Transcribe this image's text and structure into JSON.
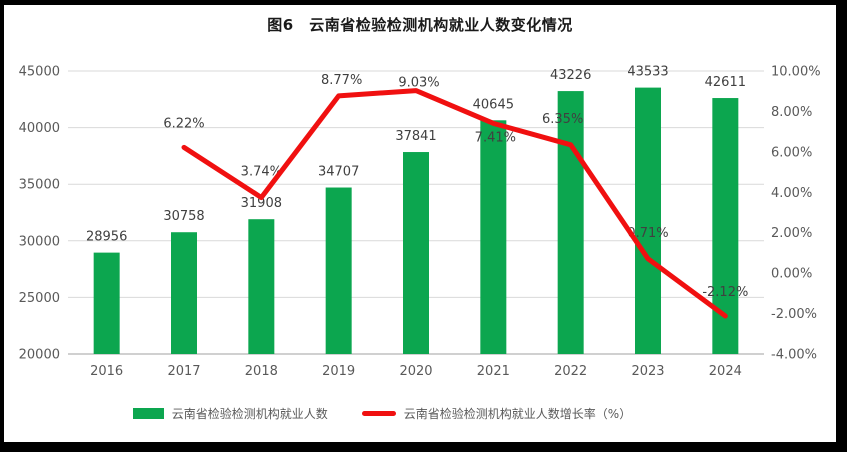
{
  "chart_data": {
    "type": "combo-bar-line",
    "title": "图6　云南省检验检测机构就业人数变化情况",
    "categories": [
      "2016",
      "2017",
      "2018",
      "2019",
      "2020",
      "2021",
      "2022",
      "2023",
      "2024"
    ],
    "series": [
      {
        "name": "云南省检验检测机构就业人数",
        "type": "bar",
        "axis": "left",
        "values": [
          28956,
          30758,
          31908,
          34707,
          37841,
          40645,
          43226,
          43533,
          42611
        ],
        "labels": [
          "28956",
          "30758",
          "31908",
          "34707",
          "37841",
          "40645",
          "43226",
          "43533",
          "42611"
        ]
      },
      {
        "name": "云南省检验检测机构就业人数增长率（%）",
        "type": "line",
        "axis": "right",
        "x": [
          "2017",
          "2018",
          "2019",
          "2020",
          "2021",
          "2022",
          "2023",
          "2024"
        ],
        "values": [
          6.22,
          3.74,
          8.77,
          9.03,
          7.41,
          6.35,
          0.71,
          -2.12
        ],
        "labels": [
          "6.22%",
          "3.74%",
          "8.77%",
          "9.03%",
          "7.41%",
          "6.35%",
          "0.71%",
          "-2.12%"
        ]
      }
    ],
    "left_axis": {
      "min": 20000,
      "max": 45000,
      "step": 5000,
      "tick_labels": [
        "20000",
        "25000",
        "30000",
        "35000",
        "40000",
        "45000"
      ]
    },
    "right_axis": {
      "min": -4,
      "max": 10,
      "step": 2,
      "tick_labels": [
        "-4.00%",
        "-2.00%",
        "0.00%",
        "2.00%",
        "4.00%",
        "6.00%",
        "8.00%",
        "10.00%"
      ]
    },
    "legend": {
      "position": "bottom",
      "items": [
        {
          "label": "云南省检验检测机构就业人数",
          "swatch": "bar"
        },
        {
          "label": "云南省检验检测机构就业人数增长率（%）",
          "swatch": "line"
        }
      ]
    },
    "colors": {
      "bar": "#0ca64f",
      "line": "#f01010",
      "grid": "#d9d9d9",
      "axis_line": "#c0c0c0",
      "tick_text": "#595959",
      "label_text": "#404040"
    },
    "grid": true
  }
}
